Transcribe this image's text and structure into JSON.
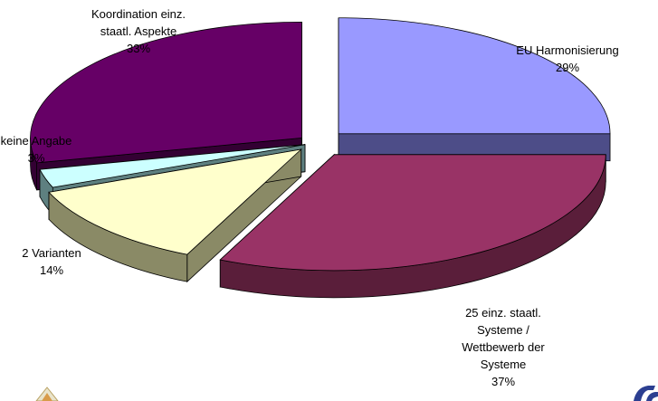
{
  "chart_data": {
    "type": "pie",
    "style": "3d-exploded",
    "slices": [
      {
        "name": "EU Harmonisierung",
        "value": 29,
        "label_lines": [
          "EU Harmonisierung",
          "29%"
        ],
        "color": "#9999FF",
        "side_color": "#4D4D88"
      },
      {
        "name": "25 einz. staatl. Systeme / Wettbewerb der Systeme",
        "value": 37,
        "label_lines": [
          "25 einz. staatl.",
          "Systeme /",
          "Wettbewerb der",
          "Systeme",
          "37%"
        ],
        "color": "#993366",
        "side_color": "#5A1E3A"
      },
      {
        "name": "2 Varianten",
        "value": 14,
        "label_lines": [
          "2 Varianten",
          "14%"
        ],
        "color": "#FFFFCC",
        "side_color": "#8A8A66"
      },
      {
        "name": "keine Angabe",
        "value": 3,
        "label_lines": [
          "keine Angabe",
          "3%"
        ],
        "color": "#CCFFFF",
        "side_color": "#5E8080"
      },
      {
        "name": "Koordination einz. staatl. Aspekte",
        "value": 33,
        "label_lines": [
          "Koordination einz.",
          "staatl. Aspekte",
          "33%"
        ],
        "color": "#660066",
        "side_color": "#330033"
      }
    ]
  }
}
